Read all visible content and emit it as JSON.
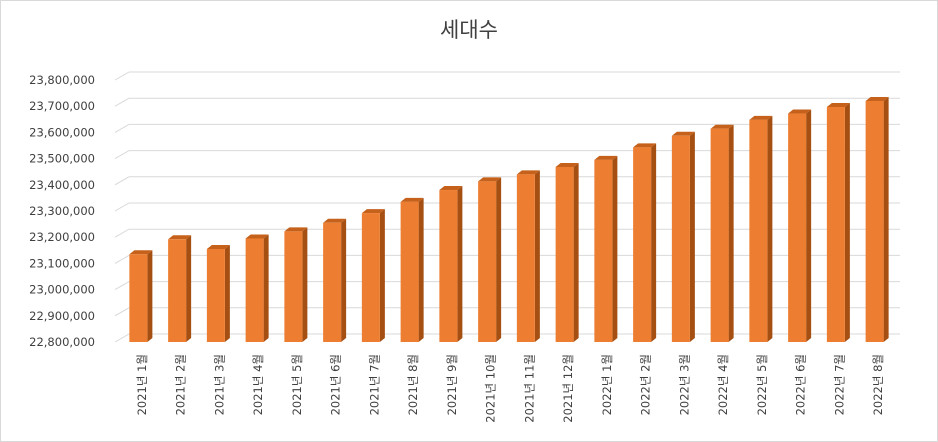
{
  "chart_data": {
    "type": "bar",
    "title": "세대수",
    "xlabel": "",
    "ylabel": "",
    "ylim": [
      22800000,
      23800000
    ],
    "yticks": [
      22800000,
      22900000,
      23000000,
      23100000,
      23200000,
      23300000,
      23400000,
      23500000,
      23600000,
      23700000,
      23800000
    ],
    "ytick_labels": [
      "22,800,000",
      "22,900,000",
      "23,000,000",
      "23,100,000",
      "23,200,000",
      "23,300,000",
      "23,400,000",
      "23,500,000",
      "23,600,000",
      "23,700,000",
      "23,800,000"
    ],
    "categories": [
      "2021년 1월",
      "2021년 2월",
      "2021년 3월",
      "2021년 4월",
      "2021년 5월",
      "2021년 6월",
      "2021년 7월",
      "2021년 8월",
      "2021년 9월",
      "2021년 10월",
      "2021년 11월",
      "2021년 12월",
      "2022년 1월",
      "2022년 2월",
      "2022년 3월",
      "2022년 4월",
      "2022년 5월",
      "2022년 6월",
      "2022년 7월",
      "2022년 8월"
    ],
    "values": [
      23135000,
      23192000,
      23155000,
      23195000,
      23222000,
      23255000,
      23292000,
      23335000,
      23380000,
      23413000,
      23440000,
      23468000,
      23495000,
      23543000,
      23587000,
      23614000,
      23648000,
      23672000,
      23697000,
      23720000
    ],
    "grid": true,
    "legend": "none",
    "bar_color": "#ED7D31",
    "bar_side_color": "#A64F12",
    "bar_top_color": "#C5611B"
  }
}
